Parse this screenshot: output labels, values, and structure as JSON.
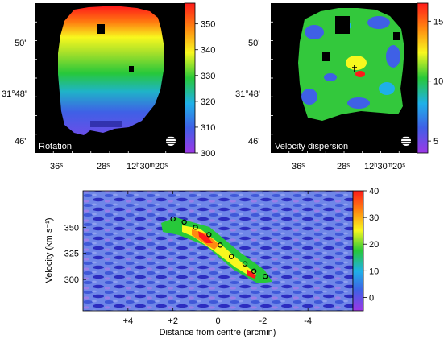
{
  "panels": {
    "rotation": {
      "label": "Rotation",
      "dec_ticks": [
        "50'",
        "31°48'",
        "46'"
      ],
      "ra_ticks": [
        "36ˢ",
        "28ˢ",
        "12ʰ30ᵐ20ˢ"
      ],
      "colorbar": {
        "ticks": [
          "350",
          "340",
          "330",
          "320",
          "310",
          "300"
        ],
        "min": 300,
        "max": 358
      }
    },
    "dispersion": {
      "label": "Velocity dispersion",
      "dec_ticks": [
        "50'",
        "31°48'",
        "46'"
      ],
      "ra_ticks": [
        "36ˢ",
        "28ˢ",
        "12ʰ30ᵐ20ˢ"
      ],
      "colorbar": {
        "ticks": [
          "15",
          "10",
          "5"
        ],
        "min": 4,
        "max": 16.5
      }
    },
    "pv": {
      "xlabel": "Distance from centre (arcmin)",
      "ylabel": "Velocity (km s⁻¹)",
      "x_ticks": [
        "+4",
        "+2",
        "0",
        "-2",
        "-4"
      ],
      "y_ticks": [
        "350",
        "325",
        "300"
      ],
      "colorbar": {
        "ticks": [
          "40",
          "30",
          "20",
          "10",
          "0"
        ],
        "min": -5,
        "max": 40
      }
    }
  },
  "chart_data": {
    "type": "scatter",
    "xlabel": "Distance from centre (arcmin)",
    "ylabel": "Velocity (km s⁻¹)",
    "xlim": [
      6,
      -6
    ],
    "ylim": [
      270,
      385
    ],
    "x": [
      2.0,
      1.5,
      1.0,
      0.4,
      -0.1,
      -0.6,
      -1.2,
      -1.6,
      -2.1
    ],
    "y": [
      358,
      355,
      350,
      343,
      333,
      322,
      315,
      308,
      303
    ]
  },
  "colors": {
    "cmap": [
      "#9d37e6",
      "#3f60e6",
      "#1fb0e8",
      "#27c83a",
      "#f8f81e",
      "#ff8a10",
      "#ff1a1a"
    ]
  }
}
